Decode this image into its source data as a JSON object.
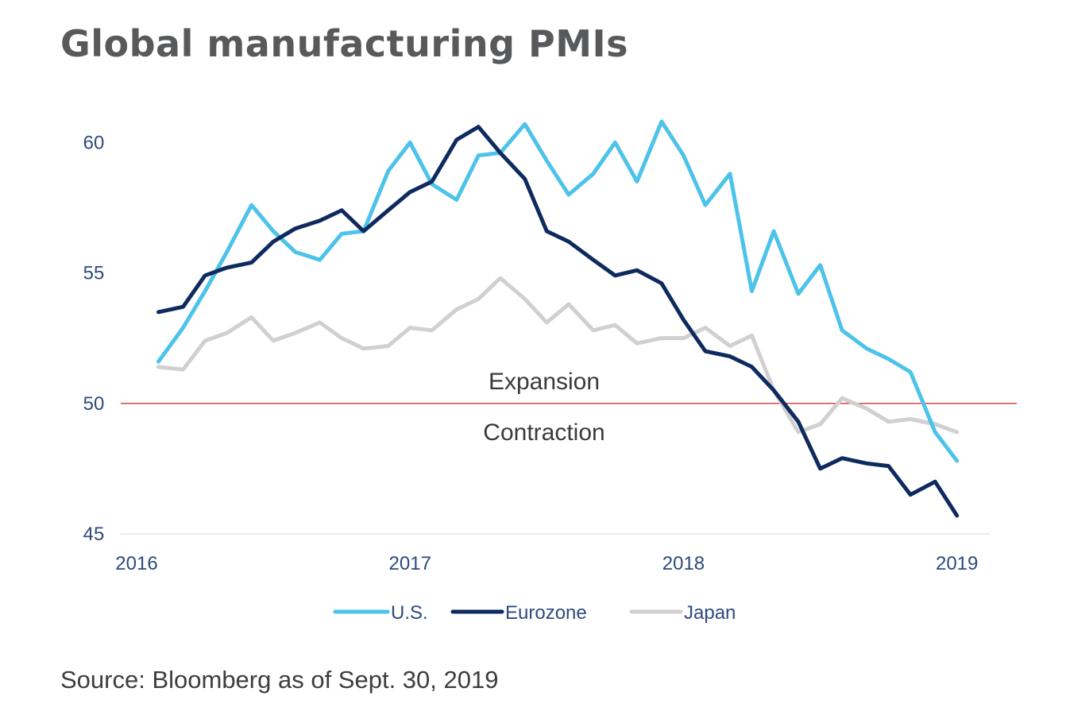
{
  "title": "Global manufacturing PMIs",
  "source": "Source: Bloomberg as of Sept. 30, 2019",
  "chart_data": {
    "type": "line",
    "title": "Global manufacturing PMIs",
    "xlabel": "",
    "ylabel": "",
    "xlim": [
      2016.0,
      2019.12
    ],
    "ylim": [
      45,
      61.5
    ],
    "grid": false,
    "y_ticks": [
      {
        "value": 60,
        "label": "60"
      },
      {
        "value": 55,
        "label": "55"
      },
      {
        "value": 50,
        "label": "50"
      },
      {
        "value": 45,
        "label": "45"
      }
    ],
    "x_ticks": [
      {
        "value": 2016,
        "label": "2016"
      },
      {
        "value": 2017,
        "label": "2017"
      },
      {
        "value": 2018,
        "label": "2018"
      },
      {
        "value": 2019,
        "label": "2019"
      }
    ],
    "reference_line": {
      "value": 50,
      "color": "#e04040",
      "label_above": "Expansion",
      "label_below": "Contraction"
    },
    "legend_position": "bottom-center",
    "x": [
      2016.08,
      2016.17,
      2016.25,
      2016.33,
      2016.42,
      2016.5,
      2016.58,
      2016.67,
      2016.75,
      2016.83,
      2016.92,
      2017.0,
      2017.08,
      2017.17,
      2017.25,
      2017.33,
      2017.42,
      2017.5,
      2017.58,
      2017.67,
      2017.75,
      2017.83,
      2017.92,
      2018.0,
      2018.08,
      2018.17,
      2018.25,
      2018.33,
      2018.42,
      2018.5,
      2018.58,
      2018.67,
      2018.75,
      2018.83,
      2018.92,
      2019.0
    ],
    "series": [
      {
        "name": "U.S.",
        "color": "#4dc3ea",
        "values": [
          51.6,
          52.9,
          54.3,
          55.8,
          57.6,
          56.6,
          55.8,
          55.5,
          56.5,
          56.6,
          58.9,
          60.0,
          58.4,
          57.8,
          59.5,
          59.6,
          60.7,
          59.3,
          58.0,
          58.8,
          60.0,
          58.5,
          60.8,
          59.5,
          57.6,
          58.8,
          54.3,
          56.6,
          54.2,
          55.3,
          52.8,
          52.1,
          51.7,
          51.2,
          48.9,
          47.8
        ]
      },
      {
        "name": "Eurozone",
        "color": "#0e2a5e",
        "values": [
          53.5,
          53.7,
          54.9,
          55.2,
          55.4,
          56.2,
          56.7,
          57.0,
          57.4,
          56.6,
          57.4,
          58.1,
          58.5,
          60.1,
          60.6,
          59.6,
          58.6,
          56.6,
          56.2,
          55.5,
          54.9,
          55.1,
          54.6,
          53.2,
          52.0,
          51.8,
          51.4,
          50.5,
          49.3,
          47.5,
          47.9,
          47.7,
          47.6,
          46.5,
          47.0,
          45.7
        ]
      },
      {
        "name": "Japan",
        "color": "#d0d0d0",
        "values": [
          51.4,
          51.3,
          52.4,
          52.7,
          53.3,
          52.4,
          52.7,
          53.1,
          52.5,
          52.1,
          52.2,
          52.9,
          52.8,
          53.6,
          54.0,
          54.8,
          54.0,
          53.1,
          53.8,
          52.8,
          53.0,
          52.3,
          52.5,
          52.5,
          52.9,
          52.2,
          52.6,
          50.5,
          48.9,
          49.2,
          50.2,
          49.8,
          49.3,
          49.4,
          49.2,
          48.9
        ]
      }
    ]
  }
}
